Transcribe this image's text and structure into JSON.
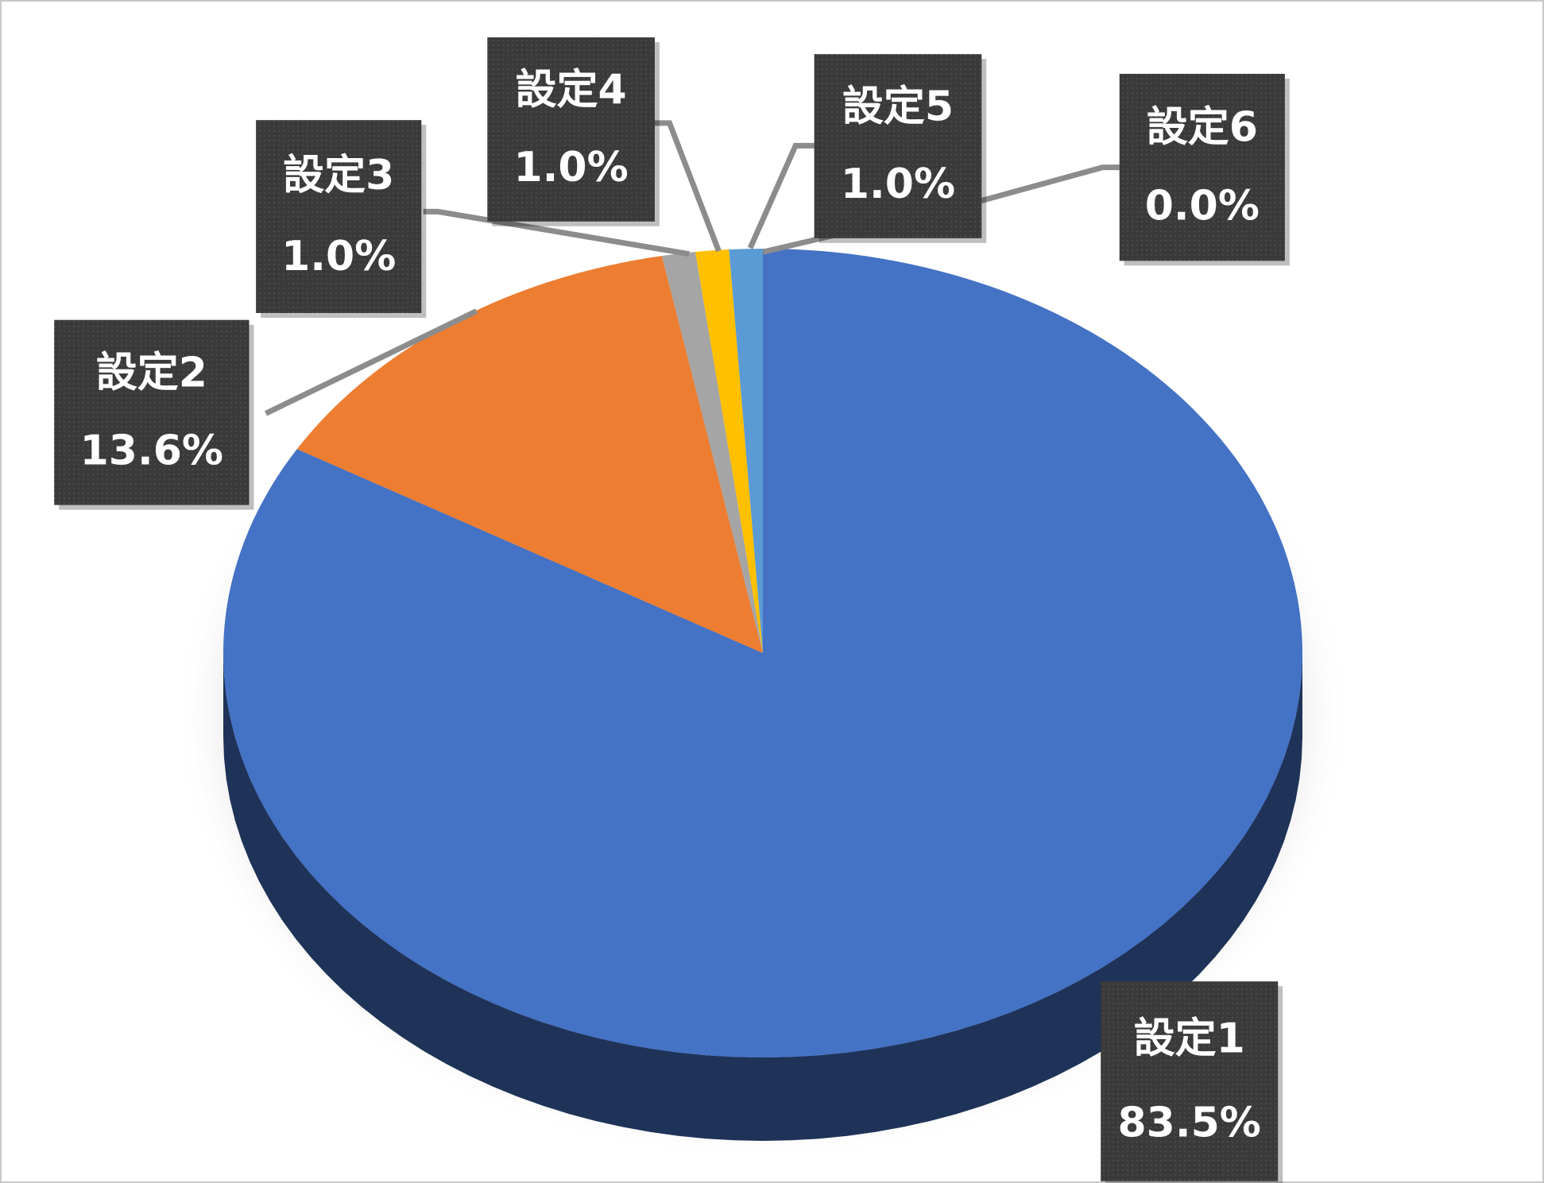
{
  "chart_data": {
    "type": "pie",
    "categories": [
      "設定1",
      "設定2",
      "設定3",
      "設定4",
      "設定5",
      "設定6"
    ],
    "values": [
      83.5,
      13.6,
      1.0,
      1.0,
      1.0,
      0.0
    ],
    "value_labels": [
      "83.5%",
      "13.6%",
      "1.0%",
      "1.0%",
      "1.0%",
      "0.0%"
    ],
    "colors": [
      "#4472c4",
      "#ed7d31",
      "#a5a5a5",
      "#ffc000",
      "#5b9bd5",
      "#70ad47"
    ]
  }
}
